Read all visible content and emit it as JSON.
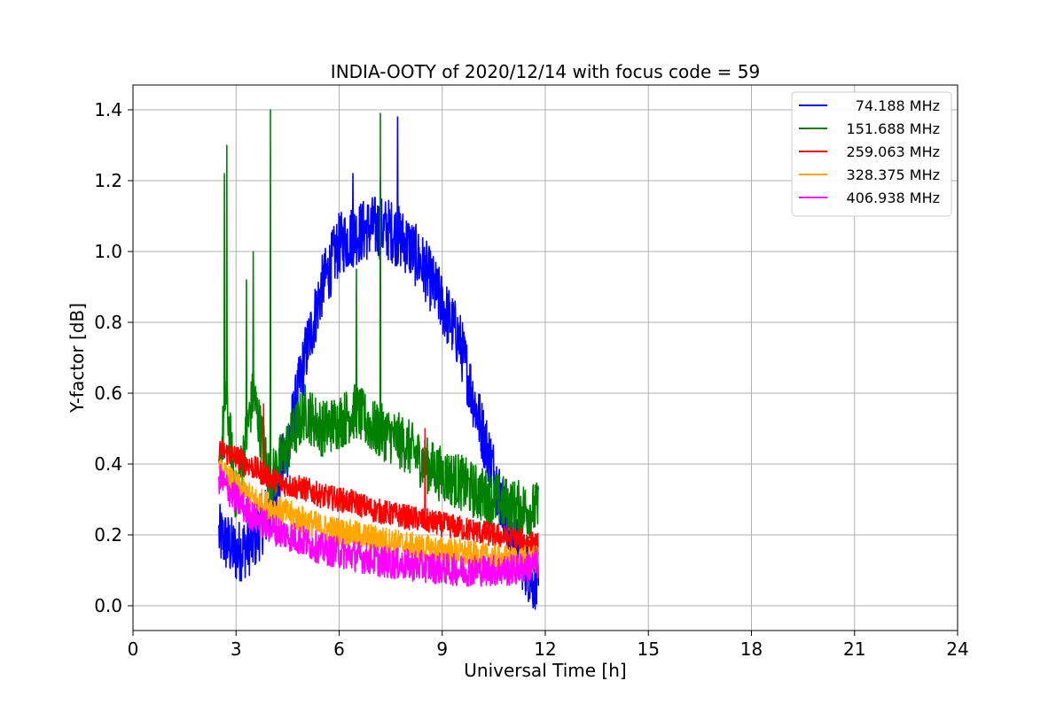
{
  "chart_data": {
    "type": "line",
    "title": "INDIA-OOTY of 2020/12/14 with focus code = 59",
    "xlabel": "Universal Time [h]",
    "ylabel": "Y-factor [dB]",
    "xlim": [
      0,
      24
    ],
    "ylim": [
      -0.07,
      1.47
    ],
    "xticks": [
      0,
      3,
      6,
      9,
      12,
      15,
      18,
      21,
      24
    ],
    "xtick_labels": [
      "0",
      "3",
      "6",
      "9",
      "12",
      "15",
      "18",
      "21",
      "24"
    ],
    "yticks": [
      0.0,
      0.2,
      0.4,
      0.6,
      0.8,
      1.0,
      1.2,
      1.4
    ],
    "ytick_labels": [
      "0.0",
      "0.2",
      "0.4",
      "0.6",
      "0.8",
      "1.0",
      "1.2",
      "1.4"
    ],
    "grid": true,
    "legend_position": "top-right",
    "series": [
      {
        "name": "74.188 MHz",
        "color": "#0000ff",
        "x": [
          2.5,
          3.0,
          3.5,
          4.0,
          4.5,
          5.0,
          5.5,
          6.0,
          6.5,
          7.0,
          7.5,
          8.0,
          8.5,
          9.0,
          9.5,
          10.0,
          10.5,
          11.0,
          11.5,
          11.8
        ],
        "y": [
          0.2,
          0.15,
          0.18,
          0.28,
          0.45,
          0.7,
          0.9,
          1.02,
          1.05,
          1.07,
          1.06,
          1.02,
          0.95,
          0.85,
          0.75,
          0.55,
          0.38,
          0.2,
          0.1,
          0.04
        ],
        "spikes": [
          [
            6.4,
            1.22
          ],
          [
            7.7,
            1.38
          ],
          [
            7.2,
            1.2
          ]
        ],
        "noise": 0.09
      },
      {
        "name": "151.688 MHz",
        "color": "#008000",
        "x": [
          2.5,
          2.7,
          3.0,
          3.5,
          4.0,
          4.5,
          5.0,
          5.5,
          6.0,
          6.5,
          7.0,
          7.5,
          8.0,
          8.5,
          9.0,
          9.5,
          10.0,
          10.5,
          11.0,
          11.5,
          11.8
        ],
        "y": [
          0.35,
          0.6,
          0.3,
          0.6,
          0.35,
          0.45,
          0.55,
          0.5,
          0.52,
          0.55,
          0.5,
          0.48,
          0.45,
          0.4,
          0.37,
          0.35,
          0.32,
          0.3,
          0.28,
          0.27,
          0.27
        ],
        "spikes": [
          [
            2.73,
            1.3
          ],
          [
            2.66,
            1.22
          ],
          [
            4.0,
            1.4
          ],
          [
            3.5,
            1.0
          ],
          [
            7.2,
            1.39
          ],
          [
            6.5,
            0.95
          ],
          [
            3.3,
            0.92
          ]
        ],
        "noise": 0.08
      },
      {
        "name": "259.063 MHz",
        "color": "#ff0000",
        "x": [
          2.5,
          3.0,
          3.5,
          4.0,
          4.5,
          5.0,
          5.5,
          6.0,
          6.5,
          7.0,
          7.5,
          8.0,
          8.5,
          9.0,
          9.5,
          10.0,
          10.5,
          11.0,
          11.5,
          11.8
        ],
        "y": [
          0.44,
          0.42,
          0.39,
          0.36,
          0.34,
          0.33,
          0.31,
          0.3,
          0.29,
          0.27,
          0.26,
          0.25,
          0.24,
          0.23,
          0.22,
          0.21,
          0.2,
          0.19,
          0.18,
          0.17
        ],
        "spikes": [
          [
            8.5,
            0.5
          ],
          [
            3.8,
            0.57
          ]
        ],
        "noise": 0.035
      },
      {
        "name": "328.375 MHz",
        "color": "#ffa500",
        "x": [
          2.5,
          3.0,
          3.5,
          4.0,
          4.5,
          5.0,
          5.5,
          6.0,
          6.5,
          7.0,
          7.5,
          8.0,
          8.5,
          9.0,
          9.5,
          10.0,
          10.5,
          11.0,
          11.5,
          11.8
        ],
        "y": [
          0.38,
          0.34,
          0.3,
          0.28,
          0.26,
          0.24,
          0.22,
          0.21,
          0.2,
          0.19,
          0.18,
          0.17,
          0.16,
          0.155,
          0.15,
          0.14,
          0.135,
          0.13,
          0.13,
          0.13
        ],
        "spikes": [],
        "noise": 0.04
      },
      {
        "name": "406.938 MHz",
        "color": "#ff00ff",
        "x": [
          2.5,
          3.0,
          3.5,
          4.0,
          4.5,
          5.0,
          5.5,
          6.0,
          6.5,
          7.0,
          7.5,
          8.0,
          8.5,
          9.0,
          9.5,
          10.0,
          10.5,
          11.0,
          11.5,
          11.8
        ],
        "y": [
          0.36,
          0.3,
          0.25,
          0.22,
          0.2,
          0.18,
          0.16,
          0.15,
          0.14,
          0.13,
          0.12,
          0.115,
          0.11,
          0.105,
          0.1,
          0.1,
          0.1,
          0.1,
          0.11,
          0.12
        ],
        "spikes": [],
        "noise": 0.045
      }
    ]
  }
}
